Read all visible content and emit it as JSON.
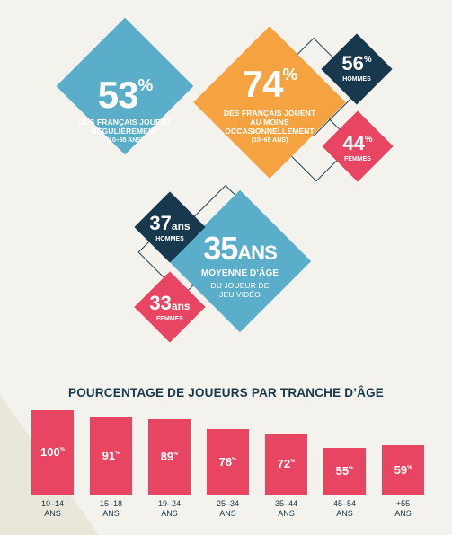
{
  "stats": {
    "regular": {
      "value": "53",
      "unit": "%",
      "caption": "DES FRANÇAIS JOUENT\nRÉGULIÈREMENT",
      "range": "(10–65 ANS)"
    },
    "occasional": {
      "value": "74",
      "unit": "%",
      "caption": "DES FRANÇAIS JOUENT\nAU MOINS\nOCCASIONNELLEMENT",
      "range": "(10–65 ANS)"
    },
    "men_share": {
      "value": "56",
      "unit": "%",
      "label": "HOMMES"
    },
    "women_share": {
      "value": "44",
      "unit": "%",
      "label": "FEMMES"
    },
    "men_age": {
      "value": "37",
      "unit": "ans",
      "label": "HOMMES"
    },
    "women_age": {
      "value": "33",
      "unit": "ans",
      "label": "FEMMES"
    },
    "average_age": {
      "value": "35",
      "unit": "ANS",
      "caption": "MOYENNE D’ÂGE",
      "sub": "DU JOUEUR DE\nJEU VIDÉO"
    }
  },
  "colors": {
    "blue": "#5aaec9",
    "orange": "#f4a340",
    "navy": "#17384d",
    "pink": "#e84563"
  },
  "chart_data": {
    "type": "bar",
    "title": "POURCENTAGE DE JOUEURS PAR TRANCHE D’ÂGE",
    "categories": [
      "10–14\nANS",
      "15–18\nANS",
      "19–24\nANS",
      "25–34\nANS",
      "35–44\nANS",
      "45–54\nANS",
      "+55\nANS"
    ],
    "values": [
      100,
      91,
      89,
      78,
      72,
      55,
      59
    ],
    "value_labels": [
      "100",
      "91",
      "89",
      "78",
      "72",
      "55",
      "59"
    ],
    "unit": "%",
    "ylim": [
      0,
      100
    ]
  }
}
